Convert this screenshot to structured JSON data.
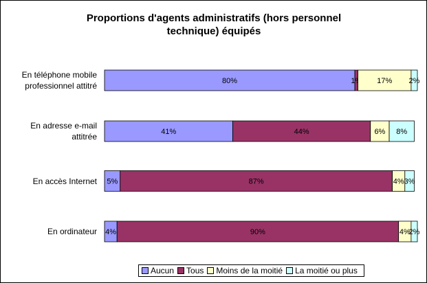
{
  "chart_data": {
    "type": "stacked-bar-horizontal",
    "title": "Proportions d'agents administratifs (hors personnel technique) équipés",
    "categories": [
      "En téléphone mobile professionnel attitré",
      "En adresse e-mail attitrée",
      "En accès Internet",
      "En ordinateur"
    ],
    "xlim": [
      0,
      100
    ],
    "series": [
      {
        "name": "Aucun",
        "color": "#9999ff",
        "values": [
          80,
          41,
          5,
          4
        ],
        "value_labels": [
          "80%",
          "41%",
          "5%",
          "4%"
        ]
      },
      {
        "name": "Tous",
        "color": "#993366",
        "values": [
          1,
          44,
          87,
          90
        ],
        "value_labels": [
          "1%",
          "44%",
          "87%",
          "90%"
        ]
      },
      {
        "name": "Moins de la moitié",
        "color": "#ffffcc",
        "values": [
          17,
          6,
          4,
          4
        ],
        "value_labels": [
          "17%",
          "6%",
          "4%",
          "4%"
        ]
      },
      {
        "name": "La moitié ou plus",
        "color": "#ccffff",
        "values": [
          2,
          8,
          3,
          2
        ],
        "value_labels": [
          "2%",
          "8%",
          "3%",
          "2%"
        ]
      }
    ]
  }
}
